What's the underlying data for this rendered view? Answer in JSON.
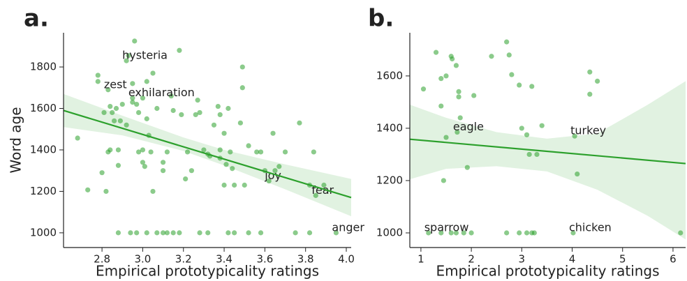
{
  "chart_data": [
    {
      "type": "scatter",
      "panel_label": "a.",
      "xlabel": "Empirical prototypicality ratings",
      "ylabel": "Word age",
      "color": "#2ca02c",
      "xlim": [
        2.611,
        4.024
      ],
      "ylim": [
        929,
        1965
      ],
      "xticks": [
        2.8,
        {
          "value": 3,
          "label": "3.0"
        },
        3.2,
        3.4,
        3.6,
        3.8,
        {
          "value": 4,
          "label": "4.0"
        }
      ],
      "yticks": [
        1000,
        1200,
        1400,
        1600,
        1800
      ],
      "x": [
        2.68,
        2.73,
        2.78,
        2.78,
        2.8,
        2.81,
        2.82,
        2.83,
        2.84,
        2.84,
        2.85,
        2.86,
        2.87,
        2.88,
        2.88,
        2.89,
        2.9,
        2.92,
        2.93,
        2.95,
        2.95,
        2.96,
        2.97,
        2.98,
        2.98,
        3.0,
        3.0,
        3.0,
        3.01,
        3.02,
        3.02,
        3.03,
        3.04,
        3.05,
        3.05,
        3.07,
        3.1,
        3.1,
        3.12,
        3.14,
        3.15,
        3.18,
        3.19,
        3.21,
        3.22,
        3.24,
        3.26,
        3.27,
        3.28,
        3.3,
        3.32,
        3.33,
        3.35,
        3.37,
        3.38,
        3.38,
        3.38,
        3.4,
        3.4,
        3.41,
        3.42,
        3.43,
        3.44,
        3.45,
        3.48,
        3.49,
        3.49,
        3.5,
        3.52,
        3.56,
        3.58,
        3.6,
        3.64,
        3.65,
        3.67,
        3.7,
        3.77,
        3.82,
        3.84,
        3.89,
        2.88,
        2.94,
        2.97,
        3.02,
        3.07,
        3.1,
        3.12,
        3.15,
        3.18,
        3.28,
        3.32,
        3.42,
        3.45,
        3.52,
        3.58,
        3.75,
        3.82
      ],
      "values": [
        1457,
        1207,
        1760,
        1730,
        1290,
        1580,
        1200,
        1390,
        1610,
        1400,
        1580,
        1540,
        1600,
        1400,
        1325,
        1540,
        1620,
        1520,
        1855,
        1630,
        1720,
        1925,
        1620,
        1390,
        1580,
        1650,
        1400,
        1340,
        1320,
        1550,
        1730,
        1470,
        1390,
        1770,
        1200,
        1600,
        1340,
        1300,
        1390,
        1660,
        1590,
        1880,
        1570,
        1260,
        1390,
        1300,
        1570,
        1640,
        1580,
        1400,
        1380,
        1370,
        1520,
        1610,
        1400,
        1360,
        1570,
        1230,
        1480,
        1330,
        1600,
        1390,
        1310,
        1230,
        1530,
        1700,
        1800,
        1230,
        1420,
        1390,
        1390,
        1300,
        1480,
        1300,
        1320,
        1390,
        1530,
        1230,
        1390,
        1230,
        1000,
        1000,
        1000,
        1000,
        1000,
        1000,
        1000,
        1000,
        1000,
        1000,
        1000,
        1000,
        1000,
        1000,
        1000,
        1000,
        1000
      ],
      "annotations": [
        {
          "text": "hysteria",
          "x": 2.92,
          "y": 1830
        },
        {
          "text": "zest",
          "x": 2.83,
          "y": 1690
        },
        {
          "text": "exhilaration",
          "x": 2.95,
          "y": 1650
        },
        {
          "text": "joy",
          "x": 3.62,
          "y": 1250
        },
        {
          "text": "fear",
          "x": 3.85,
          "y": 1180
        },
        {
          "text": "anger",
          "x": 3.95,
          "y": 1000
        }
      ],
      "fit": {
        "x": [
          2.611,
          4.024
        ],
        "values": [
          1590,
          1170
        ]
      },
      "band": {
        "x": [
          2.611,
          2.9,
          3.2,
          3.4,
          3.7,
          4.024
        ],
        "lower": [
          1510,
          1470,
          1395,
          1325,
          1210,
          1080
        ],
        "upper": [
          1670,
          1565,
          1460,
          1400,
          1330,
          1260
        ]
      }
    },
    {
      "type": "scatter",
      "panel_label": "b.",
      "xlabel": "Empirical prototypicality ratings",
      "color": "#2ca02c",
      "xlim": [
        0.78,
        6.25
      ],
      "ylim": [
        944,
        1765
      ],
      "xticks": [
        1,
        2,
        3,
        4,
        5,
        6
      ],
      "yticks": [
        1000,
        1200,
        1400,
        1600
      ],
      "x": [
        1.05,
        1.3,
        1.4,
        1.4,
        1.45,
        1.5,
        1.5,
        1.6,
        1.62,
        1.7,
        1.75,
        1.75,
        1.78,
        1.92,
        2.05,
        2.4,
        2.7,
        2.75,
        2.8,
        2.95,
        3.0,
        3.1,
        3.15,
        3.2,
        3.3,
        3.4,
        4.35,
        4.35,
        4.5,
        4.1,
        1.4,
        1.6,
        1.7,
        1.85,
        2.0,
        2.7,
        2.95,
        3.1,
        3.2,
        3.25,
        6.15
      ],
      "values": [
        1550,
        1690,
        1590,
        1485,
        1200,
        1365,
        1600,
        1675,
        1665,
        1640,
        1540,
        1520,
        1440,
        1250,
        1525,
        1675,
        1730,
        1680,
        1605,
        1565,
        1400,
        1375,
        1300,
        1560,
        1300,
        1410,
        1615,
        1530,
        1580,
        1225,
        1000,
        1000,
        1000,
        1000,
        1000,
        1000,
        1000,
        1000,
        1000,
        1000,
        1000
      ],
      "annotations": [
        {
          "text": "eagle",
          "x": 1.72,
          "y": 1385
        },
        {
          "text": "turkey",
          "x": 4.05,
          "y": 1370
        },
        {
          "text": "sparrow",
          "x": 1.15,
          "y": 1000
        },
        {
          "text": "chicken",
          "x": 4.02,
          "y": 1000
        }
      ],
      "fit": {
        "x": [
          0.78,
          6.25
        ],
        "values": [
          1358,
          1265
        ]
      },
      "band": {
        "x": [
          0.78,
          1.5,
          2.5,
          3.5,
          4.5,
          5.5,
          6.25
        ],
        "lower": [
          1205,
          1245,
          1255,
          1235,
          1165,
          1065,
          975
        ],
        "upper": [
          1490,
          1440,
          1385,
          1360,
          1380,
          1490,
          1580
        ]
      }
    }
  ]
}
